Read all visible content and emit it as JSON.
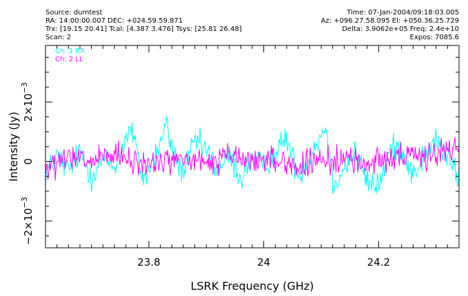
{
  "header": {
    "source": "Source: dumtest",
    "radec": "RA: 14:00:00.007 DEC: +024.59.59.871",
    "trx": "Trx: [19.15 20.41]  Tcal: [4.387 3.476]  Tsys: [25.81 26.48]",
    "scan": "Scan: 2",
    "time": "Time: 07-Jan-2004/09:18:03.005",
    "azel": "Az: +096.27.58.095 El: +050.36.25.729",
    "delta": "Delta: 3.9062e+05 Freq: 2.4e+10",
    "expos": "Expos: 7085.6"
  },
  "colors": {
    "series_rr": "#00ffff",
    "series_ll": "#ff00ff",
    "axis": "#000000"
  },
  "chart_data": {
    "type": "line",
    "xlabel": "LSRK Frequency (GHz)",
    "ylabel": "Intensity (Jy)",
    "xlim": [
      23.62,
      24.34
    ],
    "ylim": [
      -0.0029,
      0.0039
    ],
    "x_ticks": [
      23.8,
      24.0,
      24.2
    ],
    "x_tick_labels": [
      "23.8",
      "24",
      "24.2"
    ],
    "y_ticks": [
      -0.002,
      0,
      0.002
    ],
    "y_tick_labels": [
      {
        "mantissa": "−2×10",
        "exponent": "−3"
      },
      {
        "mantissa": "0",
        "exponent": ""
      },
      {
        "mantissa": "2×10",
        "exponent": "−3"
      }
    ],
    "legend_position": "top-left",
    "grid": false,
    "n_points": 512,
    "series": [
      {
        "name": "Ch: 1 RR",
        "x_start": 23.62,
        "x_end": 24.34,
        "anchors": [
          [
            23.62,
            -0.0004
          ],
          [
            23.64,
            0.0002
          ],
          [
            23.66,
            -0.0003
          ],
          [
            23.68,
            0.0003
          ],
          [
            23.7,
            -0.0005
          ],
          [
            23.72,
            0.0001
          ],
          [
            23.74,
            -0.0002
          ],
          [
            23.76,
            0.0008
          ],
          [
            23.77,
            0.0011
          ],
          [
            23.78,
            0.0002
          ],
          [
            23.79,
            -0.0006
          ],
          [
            23.8,
            -0.0003
          ],
          [
            23.82,
            0.0006
          ],
          [
            23.83,
            0.0013
          ],
          [
            23.84,
            0.0004
          ],
          [
            23.86,
            -0.0004
          ],
          [
            23.88,
            0.0007
          ],
          [
            23.9,
            0.0004
          ],
          [
            23.92,
            -0.0003
          ],
          [
            23.94,
            0.0002
          ],
          [
            23.96,
            -0.0006
          ],
          [
            23.98,
            0.0001
          ],
          [
            24.0,
            -0.0002
          ],
          [
            24.02,
            0.0003
          ],
          [
            24.04,
            0.0008
          ],
          [
            24.06,
            -0.0005
          ],
          [
            24.08,
            0.0002
          ],
          [
            24.1,
            0.0009
          ],
          [
            24.11,
            0.0012
          ],
          [
            24.12,
            -0.0008
          ],
          [
            24.14,
            -0.0002
          ],
          [
            24.16,
            0.0003
          ],
          [
            24.18,
            -0.0007
          ],
          [
            24.2,
            -0.0008
          ],
          [
            24.22,
            0.0004
          ],
          [
            24.24,
            0.0005
          ],
          [
            24.26,
            -0.0005
          ],
          [
            24.28,
            0.0002
          ],
          [
            24.3,
            0.0007
          ],
          [
            24.32,
            0.0001
          ],
          [
            24.34,
            -0.0005
          ]
        ],
        "noise": 0.00028
      },
      {
        "name": "Ch: 2 LL",
        "x_start": 23.62,
        "x_end": 24.34,
        "anchors": [
          [
            23.62,
            -0.0003
          ],
          [
            23.66,
            0.0001
          ],
          [
            23.7,
            0.0
          ],
          [
            23.74,
            0.0002
          ],
          [
            23.78,
            -0.0001
          ],
          [
            23.82,
            0.0
          ],
          [
            23.86,
            0.0001
          ],
          [
            23.9,
            -0.0001
          ],
          [
            23.94,
            0.0002
          ],
          [
            23.98,
            0.0
          ],
          [
            24.02,
            0.0001
          ],
          [
            24.06,
            -0.0002
          ],
          [
            24.1,
            0.0
          ],
          [
            24.14,
            0.0001
          ],
          [
            24.18,
            -0.0001
          ],
          [
            24.22,
            0.0002
          ],
          [
            24.26,
            0.0001
          ],
          [
            24.3,
            0.0003
          ],
          [
            24.34,
            0.0004
          ]
        ],
        "noise": 0.00028
      }
    ]
  }
}
